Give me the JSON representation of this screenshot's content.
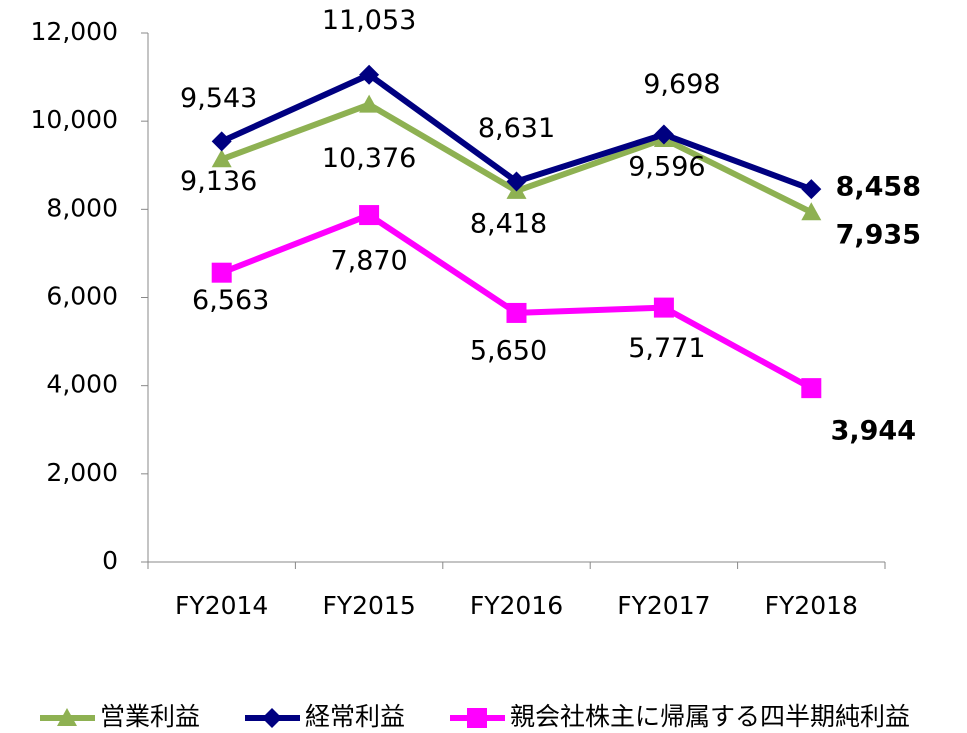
{
  "chart_data": {
    "type": "line",
    "categories": [
      "FY2014",
      "FY2015",
      "FY2016",
      "FY2017",
      "FY2018"
    ],
    "ylim": [
      0,
      12000
    ],
    "yticks": [
      0,
      {
        "value": 2000,
        "label": "2,000"
      },
      {
        "value": 4000,
        "label": "4,000"
      },
      {
        "value": 6000,
        "label": "6,000"
      },
      {
        "value": 8000,
        "label": "8,000"
      },
      {
        "value": 10000,
        "label": "10,000"
      },
      {
        "value": 12000,
        "label": "12,000"
      }
    ],
    "grid": false,
    "legend": "bottom",
    "series": [
      {
        "name": "営業利益",
        "color": "#8eb152",
        "marker": "triangle",
        "values": [
          9136,
          10376,
          8418,
          9596,
          7935
        ],
        "value_labels": [
          "9,136",
          "10,376",
          "8,418",
          "9,596",
          "7,935"
        ]
      },
      {
        "name": "経常利益",
        "color": "#000080",
        "marker": "diamond",
        "values": [
          9543,
          11053,
          8631,
          9698,
          8458
        ],
        "value_labels": [
          "9,543",
          "11,053",
          "8,631",
          "9,698",
          "8,458"
        ]
      },
      {
        "name": "親会社株主に帰属する四半期純利益",
        "color": "#ff00ff",
        "marker": "square",
        "values": [
          6563,
          7870,
          5650,
          5771,
          3944
        ],
        "value_labels": [
          "6,563",
          "7,870",
          "5,650",
          "5,771",
          "3,944"
        ]
      }
    ]
  }
}
